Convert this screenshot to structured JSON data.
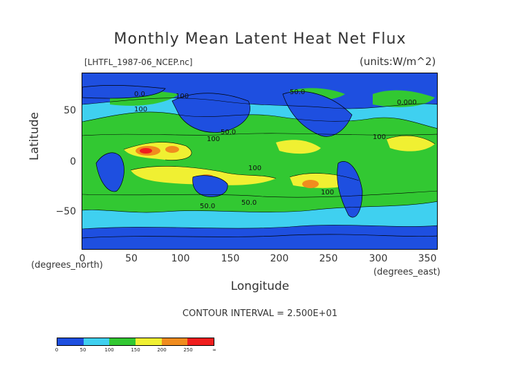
{
  "title": "Monthly Mean Latent Heat Net Flux",
  "file_label": "[LHTFL_1987-06_NCEP.nc]",
  "units_label": "(units:W/m^2)",
  "x_axis": {
    "label": "Longitude",
    "unit": "(degrees_east)",
    "ticks": [
      "0",
      "50",
      "100",
      "150",
      "200",
      "250",
      "300",
      "350"
    ]
  },
  "y_axis": {
    "label": "Latitude",
    "unit": "(degrees_north)",
    "ticks": [
      "50",
      "0",
      "−50"
    ]
  },
  "contour_interval": "CONTOUR INTERVAL = 2.500E+01",
  "colorbar": {
    "colors": [
      "#1e4fe0",
      "#3fd0f0",
      "#32c832",
      "#f0f032",
      "#f08c1e",
      "#f01e1e"
    ],
    "ticks": [
      "0",
      "50",
      "100",
      "150",
      "200",
      "250",
      "∞"
    ]
  },
  "contour_labels": [
    "0.0",
    "100",
    "50.0",
    "100",
    "50.0",
    "100",
    "0.000",
    "100",
    "50.0",
    "100",
    "100",
    "50.0"
  ]
}
